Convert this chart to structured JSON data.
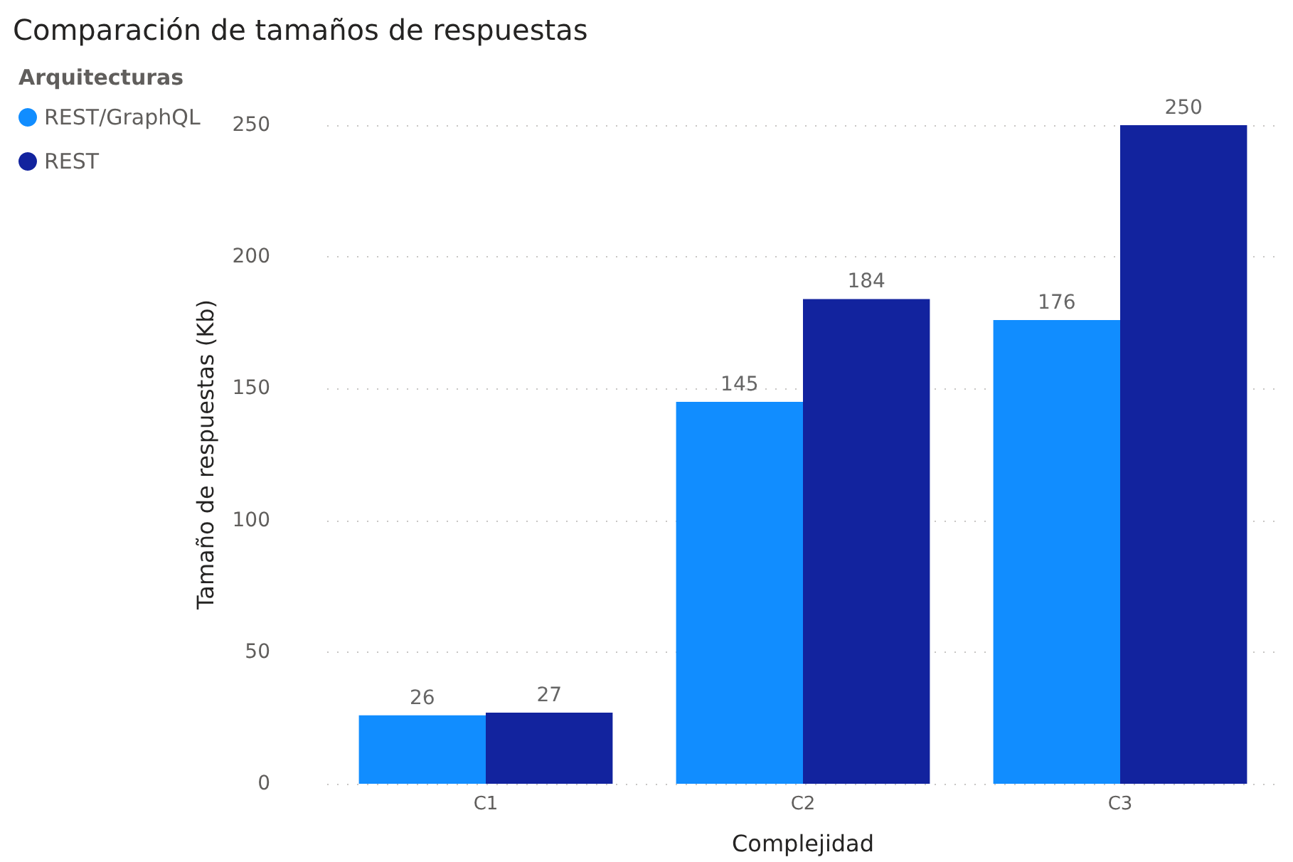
{
  "chart_data": {
    "type": "bar",
    "title": "Comparación de tamaños de respuestas",
    "xlabel": "Complejidad",
    "ylabel": "Tamaño de respuestas (Kb)",
    "legend_title": "Arquitecturas",
    "categories": [
      "C1",
      "C2",
      "C3"
    ],
    "series": [
      {
        "name": "REST/GraphQL",
        "color": "#118dff",
        "values": [
          26,
          145,
          176
        ]
      },
      {
        "name": "REST",
        "color": "#12239e",
        "values": [
          27,
          184,
          250
        ]
      }
    ],
    "ylim": [
      0,
      250
    ],
    "yticks": [
      0,
      50,
      100,
      150,
      200,
      250
    ],
    "grid": "y",
    "legend": "top left",
    "data_labels": true
  }
}
